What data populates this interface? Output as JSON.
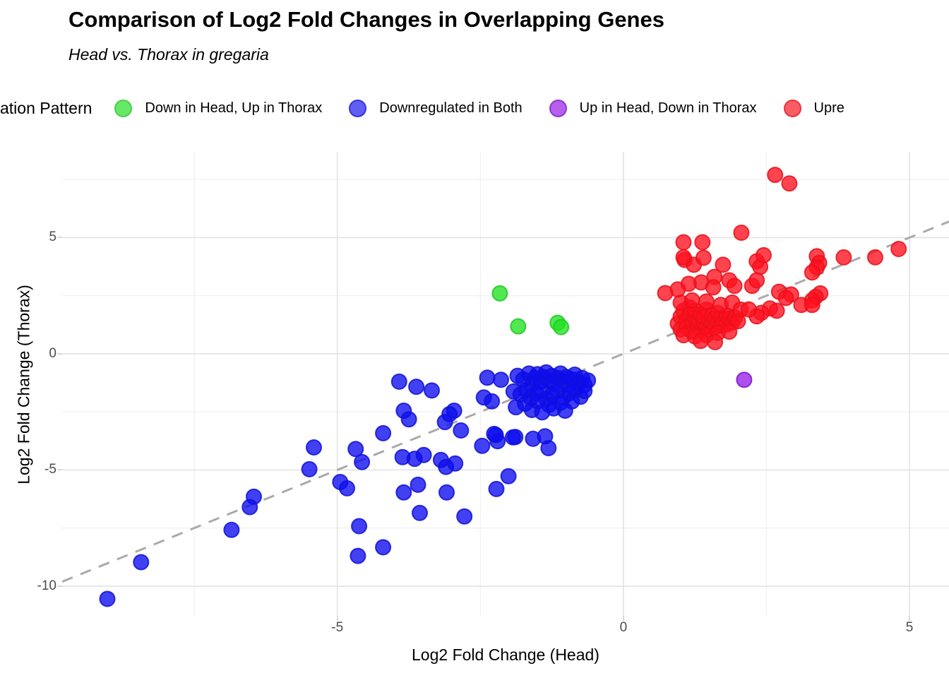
{
  "header": {
    "title": "Comparison of Log2 Fold Changes in Overlapping Genes",
    "subtitle": "Head vs. Thorax in gregaria"
  },
  "legend": {
    "title": "ation Pattern",
    "items": [
      {
        "label": "Down in Head, Up in Thorax",
        "color": "#4DE54D",
        "stroke": "#2BC52B"
      },
      {
        "label": "Downregulated in Both",
        "color": "#4444F2",
        "stroke": "#1212D6"
      },
      {
        "label": "Up in Head, Down in Thorax",
        "color": "#A946EC",
        "stroke": "#7E14C9"
      },
      {
        "label": "Upre",
        "color": "#F7404A",
        "stroke": "#E8111B"
      }
    ]
  },
  "chart_data": {
    "type": "scatter",
    "title": "Comparison of Log2 Fold Changes in Overlapping Genes",
    "subtitle": "Head vs. Thorax in gregaria",
    "xlabel": "Log2 Fold Change (Head)",
    "ylabel": "Log2 Fold Change (Thorax)",
    "xlim": [
      -9.81,
      5.69
    ],
    "ylim": [
      -11.28,
      8.69
    ],
    "x_major_ticks": [
      {
        "v": -5,
        "label": "-5"
      },
      {
        "v": 0,
        "label": "0"
      },
      {
        "v": 5,
        "label": "5"
      }
    ],
    "y_major_ticks": [
      {
        "v": 5,
        "label": "5"
      },
      {
        "v": 0,
        "label": "0"
      },
      {
        "v": -5,
        "label": "-5"
      },
      {
        "v": -10,
        "label": "-10"
      }
    ],
    "x_minor_gridlines": [
      -7.5,
      -2.5,
      2.5
    ],
    "y_minor_gridlines": [
      7.5,
      2.5,
      -2.5,
      -7.5
    ],
    "grid": true,
    "legend_position": "top",
    "reference_line": {
      "type": "identity",
      "slope": 1,
      "intercept": 0,
      "style": "dashed",
      "color": "#AAAAAA"
    },
    "point_style": {
      "radius": 10.5,
      "fill_opacity": 0.78,
      "stroke_opacity": 0.85,
      "stroke_width": 2
    },
    "colors": {
      "major_grid": "#E3E3E3",
      "minor_grid": "#F0F0F0",
      "tick_text": "#4D4D4D"
    },
    "series": [
      {
        "name": "Down in Head, Up in Thorax",
        "color": "#20E120",
        "stroke": "#1DC91D",
        "points": [
          [
            -2.16,
            2.6
          ],
          [
            -1.84,
            1.18
          ],
          [
            -1.15,
            1.33
          ],
          [
            -1.09,
            1.15
          ]
        ]
      },
      {
        "name": "Downregulated in Both",
        "color": "#0B0BEF",
        "stroke": "#1212D6",
        "points": [
          [
            -1.85,
            -0.95
          ],
          [
            -1.75,
            -1.1
          ],
          [
            -1.65,
            -0.85
          ],
          [
            -1.6,
            -1.3
          ],
          [
            -1.55,
            -1.05
          ],
          [
            -1.5,
            -0.88
          ],
          [
            -1.45,
            -1.22
          ],
          [
            -1.4,
            -1.0
          ],
          [
            -1.35,
            -0.8
          ],
          [
            -1.3,
            -1.15
          ],
          [
            -1.25,
            -0.95
          ],
          [
            -1.2,
            -1.3
          ],
          [
            -1.15,
            -1.05
          ],
          [
            -1.1,
            -0.85
          ],
          [
            -1.05,
            -1.2
          ],
          [
            -1.0,
            -1.0
          ],
          [
            -0.95,
            -1.35
          ],
          [
            -0.9,
            -1.1
          ],
          [
            -0.85,
            -0.9
          ],
          [
            -0.78,
            -1.25
          ],
          [
            -0.72,
            -1.05
          ],
          [
            -0.68,
            -1.35
          ],
          [
            -0.62,
            -1.15
          ],
          [
            -1.92,
            -1.62
          ],
          [
            -1.8,
            -1.75
          ],
          [
            -1.7,
            -1.55
          ],
          [
            -1.62,
            -1.9
          ],
          [
            -1.52,
            -1.7
          ],
          [
            -1.42,
            -1.58
          ],
          [
            -1.35,
            -1.95
          ],
          [
            -1.25,
            -1.75
          ],
          [
            -1.15,
            -1.6
          ],
          [
            -1.05,
            -1.88
          ],
          [
            -0.95,
            -1.7
          ],
          [
            -0.85,
            -1.55
          ],
          [
            -0.75,
            -1.85
          ],
          [
            -0.68,
            -1.6
          ],
          [
            -0.9,
            -2.05
          ],
          [
            -1.1,
            -2.1
          ],
          [
            -1.3,
            -2.2
          ],
          [
            -1.5,
            -2.05
          ],
          [
            -1.72,
            -2.15
          ],
          [
            -1.88,
            -2.3
          ],
          [
            -1.6,
            -2.42
          ],
          [
            -1.42,
            -2.52
          ],
          [
            -1.22,
            -2.35
          ],
          [
            -1.02,
            -2.45
          ],
          [
            -2.38,
            -1.03
          ],
          [
            -2.14,
            -1.12
          ],
          [
            -2.44,
            -1.88
          ],
          [
            -2.3,
            -2.05
          ],
          [
            -3.92,
            -1.2
          ],
          [
            -3.62,
            -1.42
          ],
          [
            -3.35,
            -1.58
          ],
          [
            -2.96,
            -2.45
          ],
          [
            -3.04,
            -2.6
          ],
          [
            -3.12,
            -2.94
          ],
          [
            -2.84,
            -3.3
          ],
          [
            -2.23,
            -3.5
          ],
          [
            -1.89,
            -3.58
          ],
          [
            -2.47,
            -3.96
          ],
          [
            -2.26,
            -3.45
          ],
          [
            -2.2,
            -3.76
          ],
          [
            -1.93,
            -3.6
          ],
          [
            -1.58,
            -3.66
          ],
          [
            -1.37,
            -3.55
          ],
          [
            -1.31,
            -4.06
          ],
          [
            -2.01,
            -5.27
          ],
          [
            -2.22,
            -5.82
          ],
          [
            -3.59,
            -5.64
          ],
          [
            -3.84,
            -5.97
          ],
          [
            -3.56,
            -6.85
          ],
          [
            -3.09,
            -5.97
          ],
          [
            -2.78,
            -7.0
          ],
          [
            -3.84,
            -2.45
          ],
          [
            -3.75,
            -2.82
          ],
          [
            -4.2,
            -3.42
          ],
          [
            -5.41,
            -4.03
          ],
          [
            -4.68,
            -4.1
          ],
          [
            -4.57,
            -4.66
          ],
          [
            -5.49,
            -4.97
          ],
          [
            -4.95,
            -5.52
          ],
          [
            -4.83,
            -5.79
          ],
          [
            -6.46,
            -6.15
          ],
          [
            -6.53,
            -6.6
          ],
          [
            -6.85,
            -7.58
          ],
          [
            -4.62,
            -7.42
          ],
          [
            -4.2,
            -8.33
          ],
          [
            -4.64,
            -8.7
          ],
          [
            -8.43,
            -8.97
          ],
          [
            -9.02,
            -10.55
          ],
          [
            -3.86,
            -4.45
          ],
          [
            -3.65,
            -4.52
          ],
          [
            -3.49,
            -4.36
          ],
          [
            -3.19,
            -4.57
          ],
          [
            -3.1,
            -4.87
          ],
          [
            -2.94,
            -4.72
          ]
        ]
      },
      {
        "name": "Up in Head, Down in Thorax",
        "color": "#971FE8",
        "stroke": "#7E14C9",
        "points": [
          [
            2.11,
            -1.12
          ]
        ]
      },
      {
        "name": "Upre",
        "color": "#FF0F1E",
        "stroke": "#E8111B",
        "points": [
          [
            0.95,
            1.3
          ],
          [
            1.0,
            1.6
          ],
          [
            1.0,
            1.05
          ],
          [
            1.05,
            1.85
          ],
          [
            1.1,
            1.45
          ],
          [
            1.1,
            1.15
          ],
          [
            1.15,
            1.7
          ],
          [
            1.15,
            2.0
          ],
          [
            1.2,
            1.3
          ],
          [
            1.2,
            0.95
          ],
          [
            1.25,
            1.55
          ],
          [
            1.25,
            1.85
          ],
          [
            1.3,
            1.2
          ],
          [
            1.3,
            1.45
          ],
          [
            1.35,
            1.7
          ],
          [
            1.35,
            1.0
          ],
          [
            1.4,
            1.35
          ],
          [
            1.4,
            1.6
          ],
          [
            1.45,
            1.15
          ],
          [
            1.45,
            1.9
          ],
          [
            1.5,
            1.45
          ],
          [
            1.5,
            1.05
          ],
          [
            1.55,
            1.3
          ],
          [
            1.55,
            1.65
          ],
          [
            1.6,
            1.5
          ],
          [
            1.6,
            1.15
          ],
          [
            1.65,
            1.75
          ],
          [
            1.65,
            1.35
          ],
          [
            1.7,
            1.2
          ],
          [
            1.7,
            1.55
          ],
          [
            1.75,
            1.4
          ],
          [
            1.8,
            1.65
          ],
          [
            1.8,
            1.25
          ],
          [
            1.85,
            1.5
          ],
          [
            1.9,
            1.35
          ],
          [
            1.95,
            1.55
          ],
          [
            2.0,
            1.4
          ],
          [
            1.05,
            0.8
          ],
          [
            1.25,
            0.75
          ],
          [
            1.45,
            0.8
          ],
          [
            1.65,
            0.9
          ],
          [
            1.85,
            0.95
          ],
          [
            1.0,
            2.2
          ],
          [
            1.2,
            2.3
          ],
          [
            1.45,
            2.25
          ],
          [
            1.7,
            2.1
          ],
          [
            1.9,
            2.2
          ],
          [
            2.05,
            1.9
          ],
          [
            1.35,
            0.55
          ],
          [
            1.6,
            0.5
          ],
          [
            1.07,
            4.04
          ],
          [
            1.23,
            3.83
          ],
          [
            1.4,
            4.13
          ],
          [
            1.74,
            3.83
          ],
          [
            2.33,
            3.98
          ],
          [
            2.39,
            3.74
          ],
          [
            1.59,
            3.31
          ],
          [
            1.85,
            3.16
          ],
          [
            1.36,
            3.07
          ],
          [
            1.14,
            3.01
          ],
          [
            0.95,
            2.77
          ],
          [
            0.73,
            2.61
          ],
          [
            1.57,
            2.86
          ],
          [
            1.94,
            2.92
          ],
          [
            2.25,
            2.92
          ],
          [
            2.33,
            3.16
          ],
          [
            2.72,
            2.67
          ],
          [
            2.93,
            2.55
          ],
          [
            3.11,
            2.1
          ],
          [
            2.84,
            2.4
          ],
          [
            2.56,
            1.95
          ],
          [
            2.68,
            1.85
          ],
          [
            2.41,
            1.76
          ],
          [
            2.33,
            1.61
          ],
          [
            2.19,
            1.91
          ],
          [
            2.65,
            7.7
          ],
          [
            2.9,
            7.33
          ],
          [
            2.06,
            5.21
          ],
          [
            1.05,
            4.8
          ],
          [
            1.38,
            4.8
          ],
          [
            1.05,
            4.15
          ],
          [
            2.45,
            4.24
          ],
          [
            3.38,
            4.2
          ],
          [
            3.85,
            4.15
          ],
          [
            4.4,
            4.15
          ],
          [
            4.81,
            4.51
          ],
          [
            3.42,
            3.91
          ],
          [
            3.38,
            3.72
          ],
          [
            3.3,
            3.5
          ],
          [
            3.44,
            2.6
          ],
          [
            3.36,
            2.45
          ],
          [
            3.3,
            2.3
          ],
          [
            3.3,
            2.1
          ]
        ]
      }
    ]
  }
}
